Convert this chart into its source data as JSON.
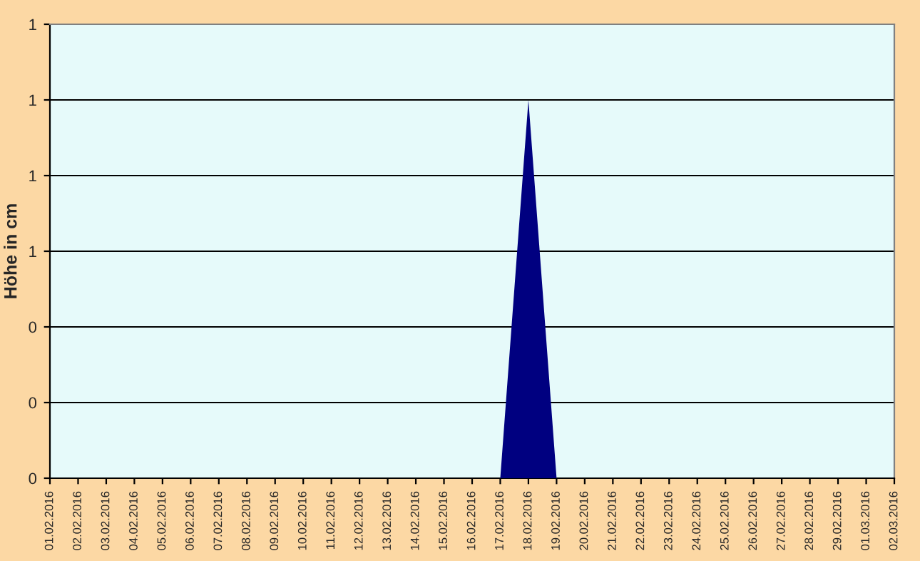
{
  "chart_data": {
    "type": "area",
    "ylabel": "Höhe in cm",
    "categories": [
      "01.02.2016",
      "02.02.2016",
      "03.02.2016",
      "04.02.2016",
      "05.02.2016",
      "06.02.2016",
      "07.02.2016",
      "08.02.2016",
      "09.02.2016",
      "10.02.2016",
      "11.02.2016",
      "12.02.2016",
      "13.02.2016",
      "14.02.2016",
      "15.02.2016",
      "16.02.2016",
      "17.02.2016",
      "18.02.2016",
      "19.02.2016",
      "20.02.2016",
      "21.02.2016",
      "22.02.2016",
      "23.02.2016",
      "24.02.2016",
      "25.02.2016",
      "26.02.2016",
      "27.02.2016",
      "28.02.2016",
      "29.02.2016",
      "01.03.2016",
      "02.03.2016"
    ],
    "values": [
      0,
      0,
      0,
      0,
      0,
      0,
      0,
      0,
      0,
      0,
      0,
      0,
      0,
      0,
      0,
      0,
      0,
      1,
      0,
      0,
      0,
      0,
      0,
      0,
      0,
      0,
      0,
      0,
      0,
      0,
      0
    ],
    "color": "#000080",
    "ylim": [
      0,
      1.2
    ],
    "yticks": [
      {
        "value": 0,
        "label": "0"
      },
      {
        "value": 0.2,
        "label": "0"
      },
      {
        "value": 0.4,
        "label": "0"
      },
      {
        "value": 0.6,
        "label": "1"
      },
      {
        "value": 0.8,
        "label": "1"
      },
      {
        "value": 1.0,
        "label": "1"
      },
      {
        "value": 1.2,
        "label": "1"
      }
    ],
    "grid": "y",
    "legend": false
  }
}
